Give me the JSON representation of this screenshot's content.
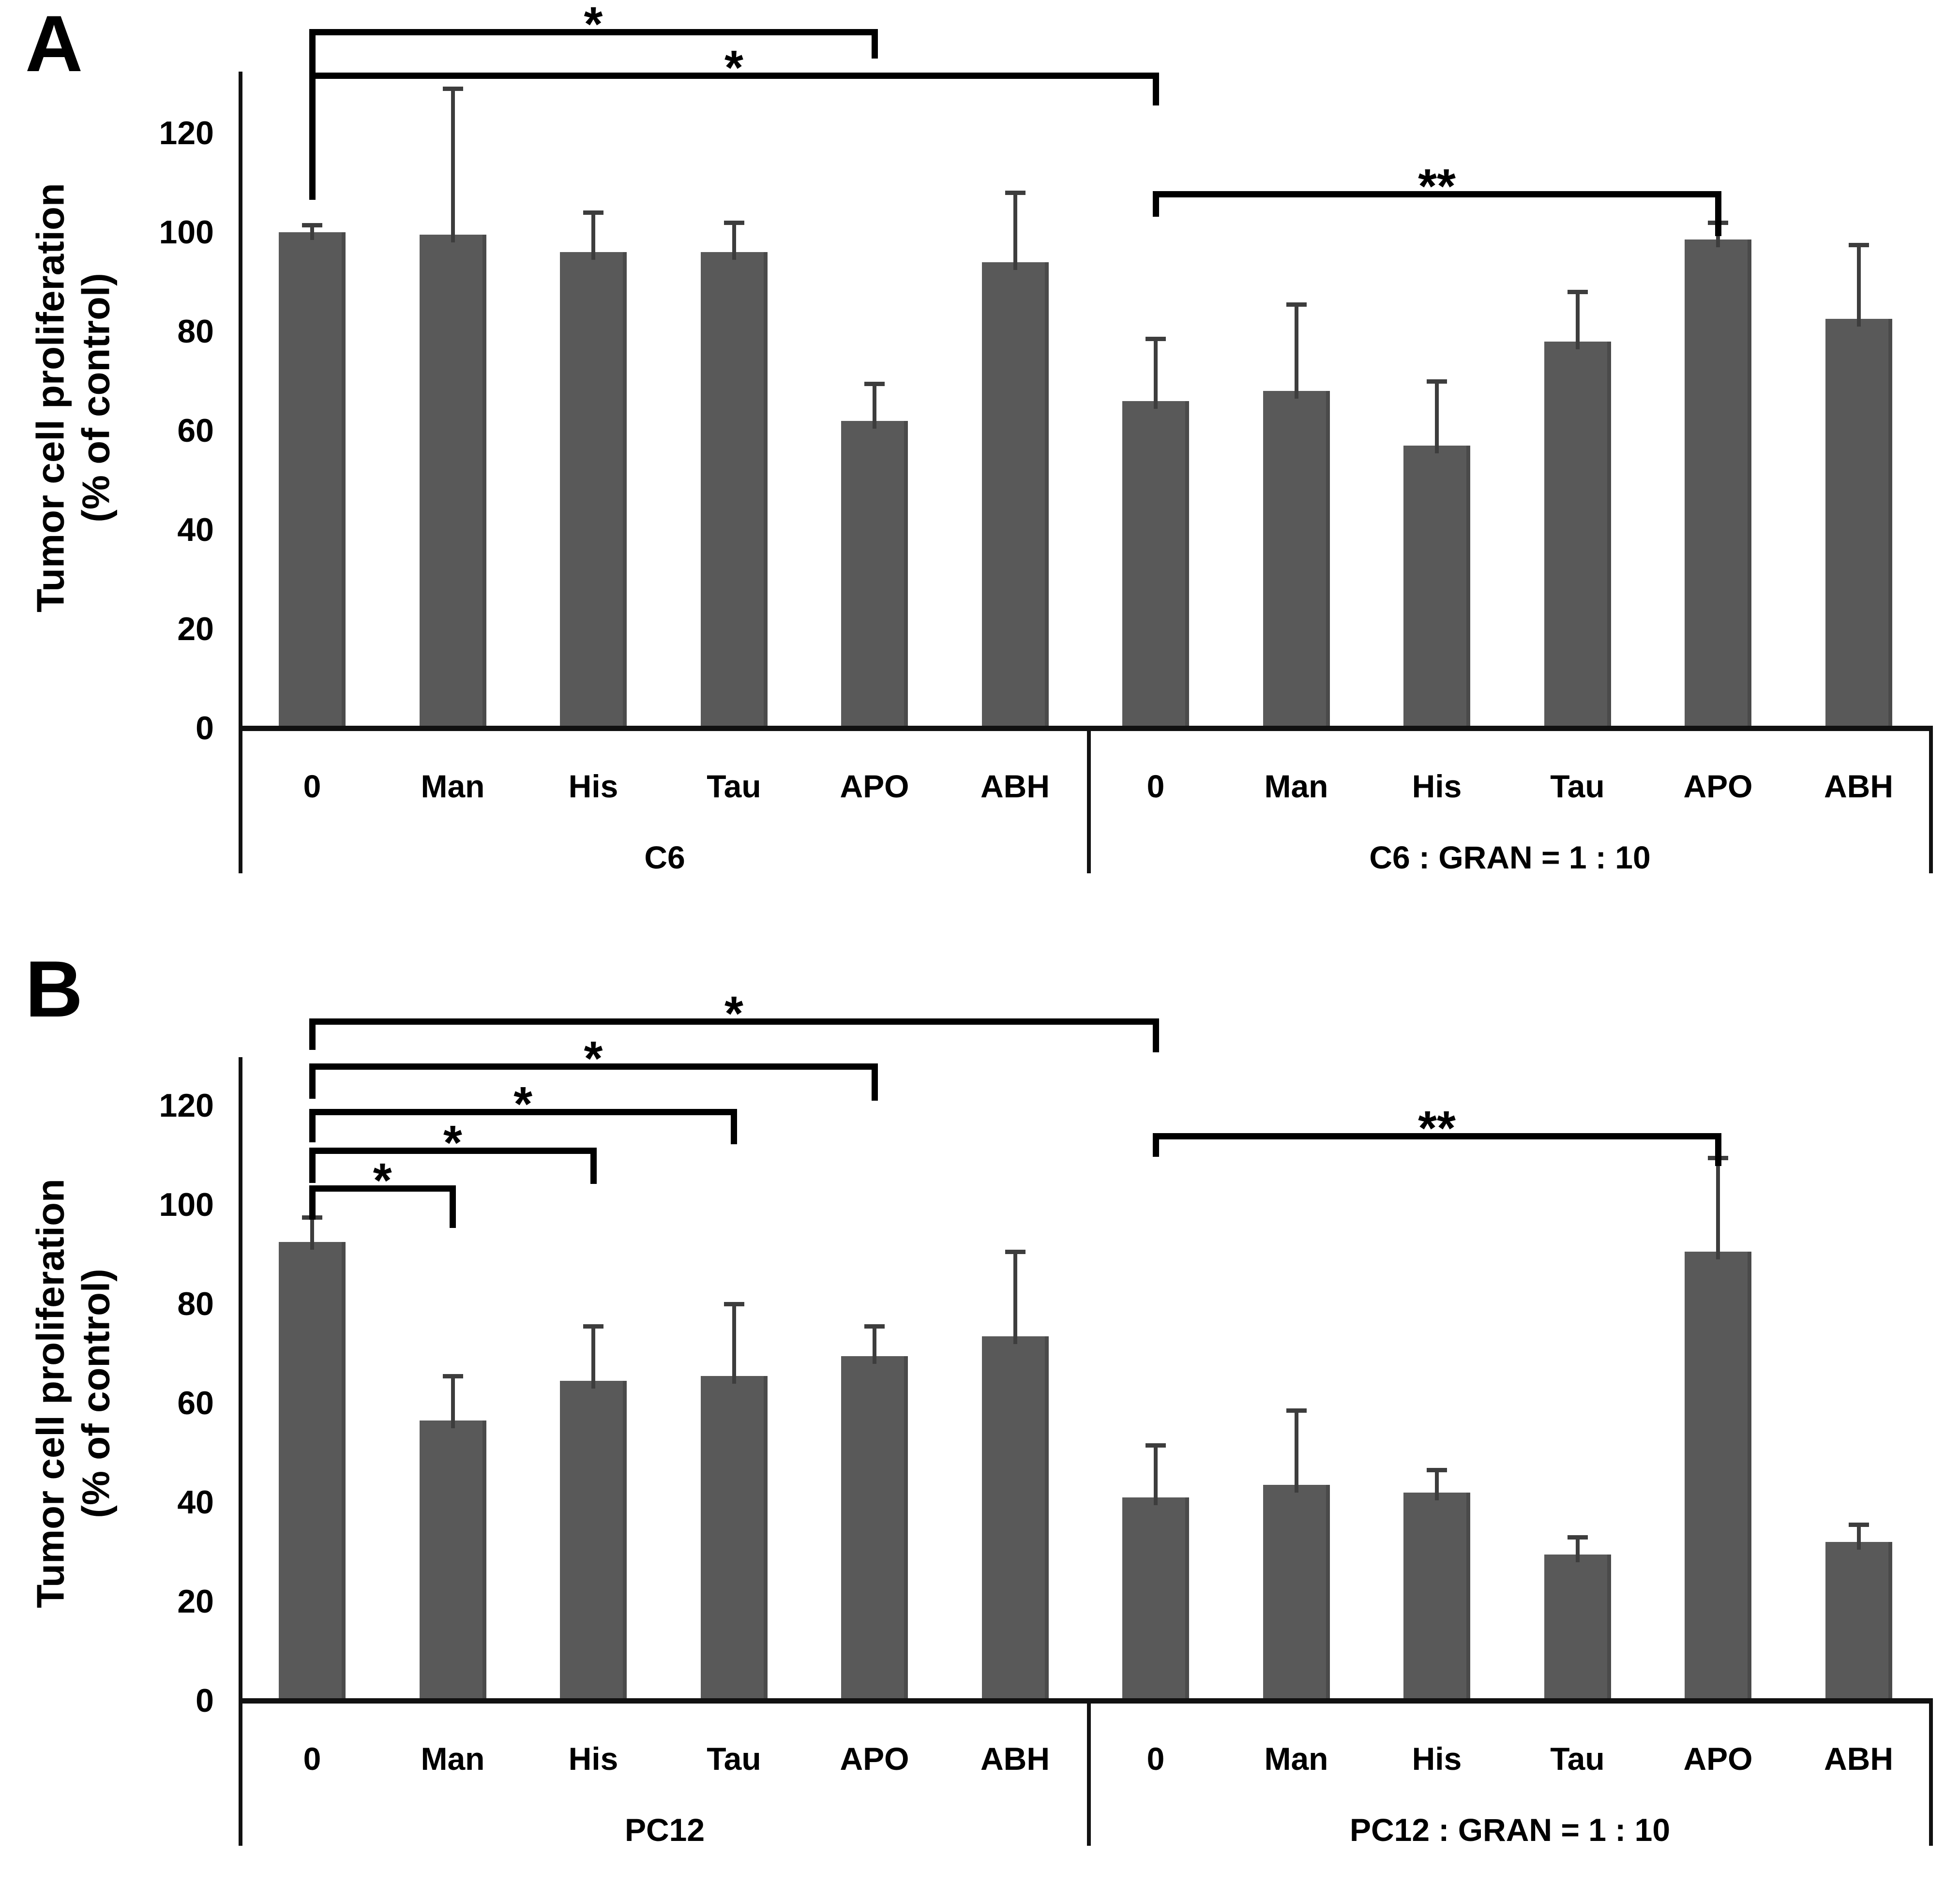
{
  "figure": {
    "background": "#ffffff",
    "bar_color": "#595959",
    "error_bar_color": "#3d3d3d",
    "axis_color": "#111111",
    "bracket_color": "#000000",
    "y_axis_title_line1": "Tumor cell proliferation",
    "y_axis_title_line2": "(% of control)"
  },
  "chart_data": [
    {
      "type": "bar",
      "panel_label": "A",
      "ylabel": "Tumor cell proliferation (% of control)",
      "ylim": [
        0,
        130
      ],
      "yticks": [
        0,
        20,
        40,
        60,
        80,
        100,
        120
      ],
      "grid": false,
      "legend": "none",
      "categories": [
        "0",
        "Man",
        "His",
        "Tau",
        "APO",
        "ABH"
      ],
      "groups": [
        {
          "label": "C6",
          "values": [
            100,
            99.5,
            96,
            96,
            62,
            94
          ],
          "error_plus": [
            1.5,
            29.5,
            8,
            6,
            7.5,
            14
          ]
        },
        {
          "label": "C6 : GRAN = 1 : 10",
          "values": [
            66,
            68,
            57,
            78,
            98.5,
            82.5
          ],
          "error_plus": [
            12.5,
            17.5,
            13,
            10,
            3.5,
            15
          ]
        }
      ],
      "significance": [
        {
          "from_group": 0,
          "from_cat": "0",
          "to_group": 0,
          "to_cat": "APO",
          "label": "*"
        },
        {
          "from_group": 0,
          "from_cat": "0",
          "to_group": 1,
          "to_cat": "0",
          "label": "*"
        },
        {
          "from_group": 1,
          "from_cat": "0",
          "to_group": 1,
          "to_cat": "APO",
          "label": "**"
        }
      ]
    },
    {
      "type": "bar",
      "panel_label": "B",
      "ylabel": "Tumor cell proliferation (% of control)",
      "ylim": [
        0,
        130
      ],
      "yticks": [
        0,
        20,
        40,
        60,
        80,
        100,
        120
      ],
      "grid": false,
      "legend": "none",
      "categories": [
        "0",
        "Man",
        "His",
        "Tau",
        "APO",
        "ABH"
      ],
      "groups": [
        {
          "label": "PC12",
          "values": [
            92.5,
            56.5,
            64.5,
            65.5,
            69.5,
            73.5
          ],
          "error_plus": [
            5,
            9,
            11,
            14.5,
            6,
            17
          ]
        },
        {
          "label": "PC12 : GRAN = 1 : 10",
          "values": [
            41,
            43.5,
            42,
            29.5,
            90.5,
            32
          ],
          "error_plus": [
            10.5,
            15,
            4.5,
            3.5,
            19,
            3.5
          ]
        }
      ],
      "significance": [
        {
          "from_group": 0,
          "from_cat": "0",
          "to_group": 0,
          "to_cat": "Man",
          "label": "*"
        },
        {
          "from_group": 0,
          "from_cat": "0",
          "to_group": 0,
          "to_cat": "His",
          "label": "*"
        },
        {
          "from_group": 0,
          "from_cat": "0",
          "to_group": 0,
          "to_cat": "Tau",
          "label": "*"
        },
        {
          "from_group": 0,
          "from_cat": "0",
          "to_group": 0,
          "to_cat": "APO",
          "label": "*"
        },
        {
          "from_group": 0,
          "from_cat": "0",
          "to_group": 1,
          "to_cat": "0",
          "label": "*"
        },
        {
          "from_group": 1,
          "from_cat": "0",
          "to_group": 1,
          "to_cat": "APO",
          "label": "**"
        }
      ]
    }
  ]
}
